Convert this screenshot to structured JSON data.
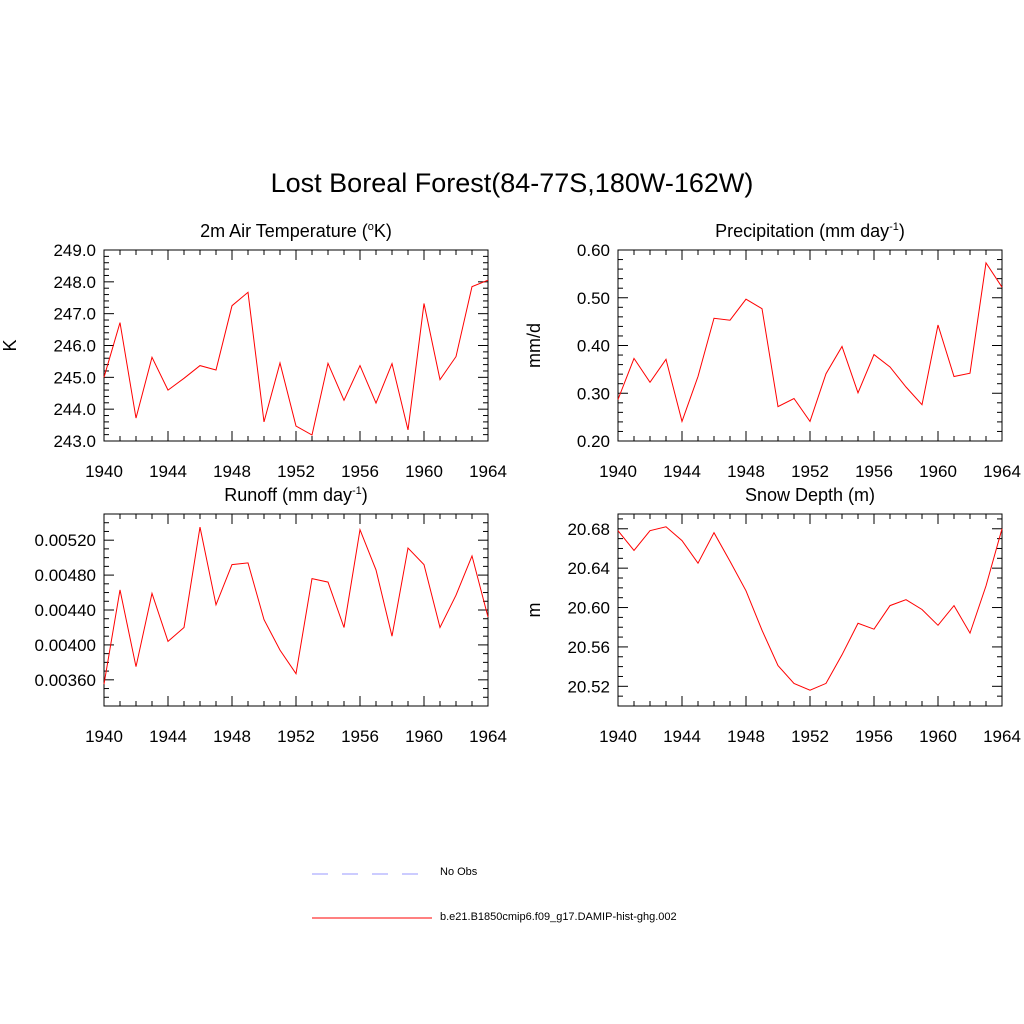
{
  "figure": {
    "title": "Lost Boreal Forest(84-77S,180W-162W)",
    "line_color": "#ff0000",
    "obs_color": "#9999ff"
  },
  "legend": {
    "items": [
      {
        "label": "No Obs",
        "style": "dashed",
        "color": "#9999ff"
      },
      {
        "label": "b.e21.B1850cmip6.f09_g17.DAMIP-hist-ghg.002",
        "style": "solid",
        "color": "#ff0000"
      }
    ]
  },
  "chart_data": [
    {
      "type": "line",
      "title": "2m Air Temperature (°K)",
      "title_parts": [
        "2m Air Temperature (",
        "o",
        "K)"
      ],
      "ylabel": "K",
      "xlim": [
        1940,
        1964
      ],
      "ylim": [
        243.0,
        249.0
      ],
      "x_ticks": [
        1940,
        1944,
        1948,
        1952,
        1956,
        1960,
        1964
      ],
      "y_ticks": [
        243.0,
        244.0,
        245.0,
        246.0,
        247.0,
        248.0,
        249.0
      ],
      "y_tick_labels": [
        "243.0",
        "244.0",
        "245.0",
        "246.0",
        "247.0",
        "248.0",
        "249.0"
      ],
      "y_minor_ticks": 5,
      "x": [
        1940,
        1941,
        1942,
        1943,
        1944,
        1945,
        1946,
        1947,
        1948,
        1949,
        1950,
        1951,
        1952,
        1953,
        1954,
        1955,
        1956,
        1957,
        1958,
        1959,
        1960,
        1961,
        1962,
        1963,
        1964
      ],
      "series": [
        {
          "name": "b.e21.B1850cmip6.f09_g17.DAMIP-hist-ghg.002",
          "values": [
            245.0,
            246.72,
            243.72,
            245.63,
            244.6,
            244.97,
            245.37,
            245.23,
            247.25,
            247.67,
            243.6,
            245.45,
            243.47,
            243.19,
            245.44,
            244.28,
            245.37,
            244.19,
            245.43,
            243.35,
            247.32,
            244.93,
            245.65,
            247.85,
            248.05
          ]
        }
      ]
    },
    {
      "type": "line",
      "title": "Precipitation (mm day-1)",
      "title_parts": [
        "Precipitation (mm day",
        "-1",
        ")"
      ],
      "ylabel": "mm/d",
      "xlim": [
        1940,
        1964
      ],
      "ylim": [
        0.2,
        0.6
      ],
      "x_ticks": [
        1940,
        1944,
        1948,
        1952,
        1956,
        1960,
        1964
      ],
      "y_ticks": [
        0.2,
        0.3,
        0.4,
        0.5,
        0.6
      ],
      "y_tick_labels": [
        "0.20",
        "0.30",
        "0.40",
        "0.50",
        "0.60"
      ],
      "y_minor_ticks": 5,
      "x": [
        1940,
        1941,
        1942,
        1943,
        1944,
        1945,
        1946,
        1947,
        1948,
        1949,
        1950,
        1951,
        1952,
        1953,
        1954,
        1955,
        1956,
        1957,
        1958,
        1959,
        1960,
        1961,
        1962,
        1963,
        1964
      ],
      "series": [
        {
          "name": "b.e21.B1850cmip6.f09_g17.DAMIP-hist-ghg.002",
          "values": [
            0.287,
            0.373,
            0.323,
            0.371,
            0.241,
            0.335,
            0.457,
            0.453,
            0.497,
            0.477,
            0.272,
            0.289,
            0.241,
            0.341,
            0.398,
            0.301,
            0.381,
            0.355,
            0.313,
            0.276,
            0.443,
            0.335,
            0.342,
            0.573,
            0.522
          ]
        }
      ]
    },
    {
      "type": "line",
      "title": "Runoff (mm day-1)",
      "title_parts": [
        "Runoff (mm day",
        "-1",
        ")"
      ],
      "ylabel": "",
      "xlim": [
        1940,
        1964
      ],
      "ylim": [
        0.0033,
        0.0055
      ],
      "x_ticks": [
        1940,
        1944,
        1948,
        1952,
        1956,
        1960,
        1964
      ],
      "y_ticks": [
        0.0036,
        0.004,
        0.0044,
        0.0048,
        0.0052
      ],
      "y_tick_labels": [
        "0.00360",
        "0.00400",
        "0.00440",
        "0.00480",
        "0.00520"
      ],
      "y_minor_ticks": 4,
      "x": [
        1940,
        1941,
        1942,
        1943,
        1944,
        1945,
        1946,
        1947,
        1948,
        1949,
        1950,
        1951,
        1952,
        1953,
        1954,
        1955,
        1956,
        1957,
        1958,
        1959,
        1960,
        1961,
        1962,
        1963,
        1964
      ],
      "series": [
        {
          "name": "b.e21.B1850cmip6.f09_g17.DAMIP-hist-ghg.002",
          "values": [
            0.00355,
            0.00463,
            0.00375,
            0.00459,
            0.00404,
            0.0042,
            0.00535,
            0.00446,
            0.00492,
            0.00494,
            0.00429,
            0.00394,
            0.00367,
            0.00476,
            0.00472,
            0.0042,
            0.00532,
            0.00486,
            0.0041,
            0.00511,
            0.00492,
            0.0042,
            0.00457,
            0.00502,
            0.00432
          ]
        }
      ]
    },
    {
      "type": "line",
      "title": "Snow Depth (m)",
      "title_parts": [
        "Snow Depth (m)",
        "",
        ""
      ],
      "ylabel": "m",
      "xlim": [
        1940,
        1964
      ],
      "ylim": [
        20.5,
        20.695
      ],
      "x_ticks": [
        1940,
        1944,
        1948,
        1952,
        1956,
        1960,
        1964
      ],
      "y_ticks": [
        20.52,
        20.56,
        20.6,
        20.64,
        20.68
      ],
      "y_tick_labels": [
        "20.52",
        "20.56",
        "20.60",
        "20.64",
        "20.68"
      ],
      "y_minor_ticks": 4,
      "x": [
        1940,
        1941,
        1942,
        1943,
        1944,
        1945,
        1946,
        1947,
        1948,
        1949,
        1950,
        1951,
        1952,
        1953,
        1954,
        1955,
        1956,
        1957,
        1958,
        1959,
        1960,
        1961,
        1962,
        1963,
        1964
      ],
      "series": [
        {
          "name": "b.e21.B1850cmip6.f09_g17.DAMIP-hist-ghg.002",
          "values": [
            20.678,
            20.658,
            20.678,
            20.682,
            20.668,
            20.645,
            20.676,
            20.647,
            20.617,
            20.577,
            20.541,
            20.523,
            20.516,
            20.523,
            20.552,
            20.584,
            20.578,
            20.602,
            20.608,
            20.598,
            20.582,
            20.602,
            20.574,
            20.622,
            20.68
          ]
        }
      ]
    }
  ]
}
